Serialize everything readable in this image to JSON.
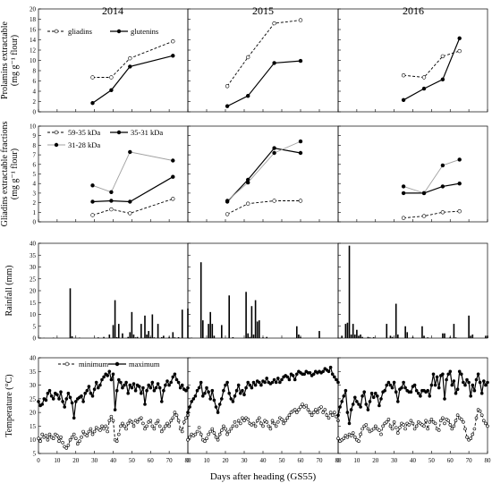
{
  "figure": {
    "years": [
      "2014",
      "2015",
      "2016"
    ],
    "xlabel": "Days after heading (GS55)",
    "x_ticks": [
      0,
      10,
      20,
      30,
      40,
      50,
      60,
      70,
      80
    ]
  },
  "chart_data": [
    {
      "id": "prolamins",
      "type": "line",
      "ylabel_lines": [
        "Prolamins extractable",
        "(mg g⁻¹ flour)"
      ],
      "ylim": [
        0,
        20
      ],
      "yticks": [
        0,
        2,
        4,
        6,
        8,
        10,
        12,
        14,
        16,
        18,
        20
      ],
      "legend": [
        {
          "name": "gliadins",
          "style": "dashed-open"
        },
        {
          "name": "glutenins",
          "style": "solid-filled"
        }
      ],
      "panels": {
        "2014": [
          {
            "name": "gliadins",
            "x": [
              29,
              39,
              49,
              72
            ],
            "y": [
              6.7,
              6.7,
              10.4,
              13.7
            ]
          },
          {
            "name": "glutenins",
            "x": [
              29,
              39,
              49,
              72
            ],
            "y": [
              1.7,
              4.2,
              8.8,
              10.9
            ]
          }
        ],
        "2015": [
          {
            "name": "gliadins",
            "x": [
              21,
              32,
              46,
              60
            ],
            "y": [
              5.0,
              10.6,
              17.2,
              17.8
            ]
          },
          {
            "name": "glutenins",
            "x": [
              21,
              32,
              46,
              60
            ],
            "y": [
              1.1,
              3.1,
              9.5,
              9.9
            ]
          }
        ],
        "2016": [
          {
            "name": "gliadins",
            "x": [
              35,
              46,
              56,
              65
            ],
            "y": [
              7.1,
              6.7,
              10.8,
              11.8
            ]
          },
          {
            "name": "glutenins",
            "x": [
              35,
              46,
              56,
              65
            ],
            "y": [
              2.3,
              4.5,
              6.3,
              14.3
            ]
          }
        ]
      }
    },
    {
      "id": "gliadin-fractions",
      "type": "line",
      "ylabel_lines": [
        "Gliadins extractable fractions",
        "(mg g⁻¹ flour)"
      ],
      "ylim": [
        0,
        10
      ],
      "yticks": [
        0,
        1,
        2,
        3,
        4,
        5,
        6,
        7,
        8,
        9,
        10
      ],
      "legend": [
        {
          "name": "59-35 kDa",
          "style": "dashed-open"
        },
        {
          "name": "35-31 kDa",
          "style": "solid-filled"
        },
        {
          "name": "31-28 kDa",
          "style": "gray-filled"
        }
      ],
      "panels": {
        "2014": [
          {
            "name": "59-35 kDa",
            "x": [
              29,
              39,
              49,
              72
            ],
            "y": [
              0.7,
              1.3,
              0.9,
              2.4
            ]
          },
          {
            "name": "35-31 kDa",
            "x": [
              29,
              39,
              49,
              72
            ],
            "y": [
              2.1,
              2.2,
              2.1,
              4.7
            ]
          },
          {
            "name": "31-28 kDa",
            "x": [
              29,
              39,
              49,
              72
            ],
            "y": [
              3.8,
              3.1,
              7.3,
              6.4
            ]
          }
        ],
        "2015": [
          {
            "name": "59-35 kDa",
            "x": [
              21,
              32,
              46,
              60
            ],
            "y": [
              0.8,
              1.9,
              2.2,
              2.2
            ]
          },
          {
            "name": "35-31 kDa",
            "x": [
              21,
              32,
              46,
              60
            ],
            "y": [
              2.1,
              4.4,
              7.7,
              7.2
            ]
          },
          {
            "name": "31-28 kDa",
            "x": [
              21,
              32,
              46,
              60
            ],
            "y": [
              2.2,
              4.1,
              7.2,
              8.4
            ]
          }
        ],
        "2016": [
          {
            "name": "59-35 kDa",
            "x": [
              35,
              46,
              56,
              65
            ],
            "y": [
              0.4,
              0.6,
              1.0,
              1.1
            ]
          },
          {
            "name": "35-31 kDa",
            "x": [
              35,
              46,
              56,
              65
            ],
            "y": [
              3.0,
              3.0,
              3.7,
              4.0
            ]
          },
          {
            "name": "31-28 kDa",
            "x": [
              35,
              46,
              56,
              65
            ],
            "y": [
              3.7,
              3.0,
              5.9,
              6.5
            ]
          }
        ]
      }
    },
    {
      "id": "rainfall",
      "type": "bar",
      "ylabel_lines": [
        "Rainfall (mm)"
      ],
      "ylim": [
        0,
        40
      ],
      "yticks": [
        0,
        5,
        10,
        15,
        20,
        25,
        30,
        35,
        40
      ],
      "panels": {
        "2014": {
          "x": [
            1,
            3,
            8,
            17,
            18,
            22,
            32,
            35,
            38,
            40,
            41,
            42,
            43,
            45,
            48,
            49,
            50,
            51,
            52,
            53,
            55,
            57,
            58,
            59,
            60,
            61,
            62,
            64,
            66,
            67,
            70,
            72,
            73,
            75,
            77,
            80
          ],
          "y": [
            0.2,
            0.1,
            0.2,
            21,
            0.8,
            0.2,
            0.3,
            0.5,
            1.5,
            5.5,
            16,
            0.4,
            6,
            2,
            0.5,
            2.5,
            11,
            1.5,
            0.3,
            0.5,
            6,
            9.5,
            1.5,
            3,
            0.4,
            10,
            0.3,
            6,
            0.4,
            1,
            0.5,
            2.5,
            0.3,
            0.4,
            12,
            12.5
          ]
        },
        "2015": {
          "x": [
            2,
            7,
            8,
            11,
            12,
            13,
            14,
            18,
            22,
            24,
            31,
            32,
            33,
            34,
            35,
            36,
            37,
            38,
            40,
            42,
            58,
            59,
            60,
            70
          ],
          "y": [
            0.2,
            32,
            7.5,
            6,
            11,
            6,
            1,
            5.5,
            18,
            0.4,
            19.5,
            2,
            0.5,
            13.5,
            1.5,
            16,
            7,
            7.5,
            0.3,
            0.5,
            5,
            1.5,
            0.5,
            3
          ]
        },
        "2016": {
          "x": [
            2,
            4,
            5,
            6,
            7,
            8,
            9,
            10,
            11,
            12,
            13,
            16,
            17,
            19,
            26,
            28,
            29,
            31,
            32,
            36,
            37,
            40,
            45,
            46,
            48,
            56,
            57,
            60,
            62,
            63,
            70,
            71,
            72,
            79,
            80
          ],
          "y": [
            1,
            6,
            6.5,
            39,
            1.5,
            6,
            1.5,
            3.5,
            1,
            1.5,
            0.5,
            0.5,
            0.3,
            0.4,
            6,
            1,
            0.5,
            14.5,
            1.5,
            5,
            2.5,
            0.5,
            5,
            1,
            0.3,
            2,
            2,
            0.5,
            6,
            0.3,
            9.5,
            1,
            1.5,
            1,
            1
          ]
        }
      }
    },
    {
      "id": "temperature",
      "type": "line",
      "ylabel_lines": [
        "Temperature (°C)"
      ],
      "ylim": [
        5,
        40
      ],
      "yticks": [
        5,
        10,
        15,
        20,
        25,
        30,
        35,
        40
      ],
      "legend": [
        {
          "name": "minimum",
          "style": "dashed-open"
        },
        {
          "name": "maximum",
          "style": "solid-filled"
        }
      ],
      "series_names": [
        "minimum",
        "maximum"
      ],
      "panels": {
        "2014": {
          "minimum": [
            10.5,
            9.5,
            12,
            11,
            11.5,
            10,
            12,
            11,
            10.5,
            12,
            11.5,
            9.5,
            11,
            9,
            7.5,
            7,
            8,
            10,
            11,
            12,
            10.5,
            8.5,
            9.5,
            11,
            13,
            12,
            11.5,
            13,
            14,
            12,
            13,
            14.5,
            14,
            13.5,
            15,
            14,
            15,
            13,
            17,
            18.5,
            17,
            10,
            9.5,
            12,
            15,
            16,
            15,
            14,
            16,
            17,
            16.5,
            15,
            17,
            16.5,
            17.5,
            18,
            16,
            14,
            15,
            16.5,
            17,
            15,
            14,
            16,
            17,
            15,
            13,
            14,
            15,
            16,
            15,
            17,
            18,
            20,
            19,
            17,
            14,
            13,
            16.5,
            18,
            19
          ],
          "maximum": [
            24,
            22.5,
            23,
            25,
            24.5,
            27,
            28,
            26,
            25,
            27,
            26.5,
            25,
            27.5,
            24,
            22,
            25,
            27,
            25.5,
            23.5,
            18,
            24,
            25,
            25.5,
            26,
            24,
            27,
            28,
            29.5,
            27,
            26,
            28.5,
            31,
            29,
            30,
            32,
            33,
            34,
            33.5,
            35,
            32,
            34,
            21,
            28,
            32,
            31,
            29,
            30,
            31,
            27,
            30,
            29,
            30.5,
            28,
            30,
            29.5,
            27,
            29,
            23,
            28,
            30,
            29,
            31,
            28,
            29,
            30.5,
            29,
            24,
            28,
            30,
            31.5,
            30,
            31,
            33,
            34,
            32,
            31,
            29,
            30,
            28.5,
            28,
            29
          ]
        },
        "2015": {
          "minimum": [
            10,
            11,
            12,
            11.5,
            12,
            13,
            14.5,
            12,
            10,
            9.5,
            10.5,
            12,
            13,
            14,
            12.5,
            11,
            10,
            12,
            13.5,
            15,
            14,
            12,
            13,
            14,
            15,
            16.5,
            15,
            17,
            16,
            18,
            17,
            18,
            17.5,
            16,
            15.5,
            16,
            15,
            17,
            18,
            16,
            15,
            17,
            16.5,
            15,
            14,
            17,
            16,
            15,
            16.5,
            18,
            17.5,
            16,
            17,
            18,
            19,
            20,
            20.5,
            21,
            20,
            21,
            22,
            23,
            22,
            22.5,
            21,
            20,
            19,
            20,
            21,
            20,
            21.5,
            22,
            20,
            21,
            19,
            18,
            20,
            19,
            20,
            18.5,
            17
          ],
          "maximum": [
            20,
            22,
            24,
            25,
            26,
            28,
            29,
            31,
            26,
            27,
            29,
            27.5,
            25,
            28,
            24.5,
            22,
            20,
            23,
            25,
            28,
            30,
            31,
            27,
            25,
            24,
            26,
            28,
            30,
            27,
            28,
            26.5,
            29,
            31,
            30,
            29,
            31,
            30,
            31.5,
            31,
            30,
            31.5,
            31,
            32.5,
            31,
            30.5,
            31,
            32,
            31,
            32.5,
            31,
            32,
            33,
            33.5,
            33,
            32,
            34,
            33.5,
            32,
            34,
            35,
            34.5,
            34,
            34,
            35,
            34.5,
            34.5,
            33.5,
            34,
            35,
            34.5,
            35,
            34.5,
            35,
            36,
            35.5,
            35,
            36.5,
            34,
            33,
            32,
            31
          ]
        },
        "2016": {
          "minimum": [
            10.5,
            9.5,
            10,
            10.5,
            11.5,
            11,
            12,
            11.5,
            12.5,
            11,
            10,
            9.5,
            12,
            14,
            15,
            15.5,
            14,
            13,
            13.5,
            14,
            15,
            14,
            13.5,
            12,
            15,
            16,
            16.5,
            17.5,
            15,
            14,
            16.5,
            14.5,
            12.5,
            14.5,
            16,
            15.5,
            14,
            16,
            15.5,
            17,
            16,
            14,
            15,
            16.5,
            16,
            15.5,
            15,
            17,
            14,
            16.5,
            17.5,
            16.5,
            16,
            14,
            13.5,
            17,
            18,
            16,
            17.5,
            17,
            15.5,
            14,
            15,
            17,
            19,
            18,
            17.5,
            16.5,
            14,
            11,
            10,
            10.5,
            12,
            14,
            18,
            21,
            20.5,
            19,
            17,
            16,
            15
          ],
          "maximum": [
            19,
            22,
            24,
            26,
            28,
            20,
            16,
            21,
            23,
            25.5,
            24,
            23,
            22,
            26,
            27.5,
            23,
            21,
            24,
            27,
            25.5,
            27,
            26,
            22.5,
            25,
            27.5,
            28,
            30,
            31,
            30,
            29,
            31,
            27.5,
            24,
            28.5,
            29,
            31,
            29,
            28,
            27.5,
            27.5,
            29.5,
            30,
            28,
            27,
            26,
            28,
            28,
            27.5,
            28,
            26,
            30,
            34,
            30,
            33,
            29,
            33.5,
            34,
            25,
            32,
            34,
            35,
            30,
            31.5,
            27,
            28.5,
            35,
            34,
            31,
            30,
            32,
            31,
            26,
            30,
            28,
            32,
            34,
            31,
            27,
            31.5,
            30,
            31
          ]
        }
      }
    }
  ]
}
